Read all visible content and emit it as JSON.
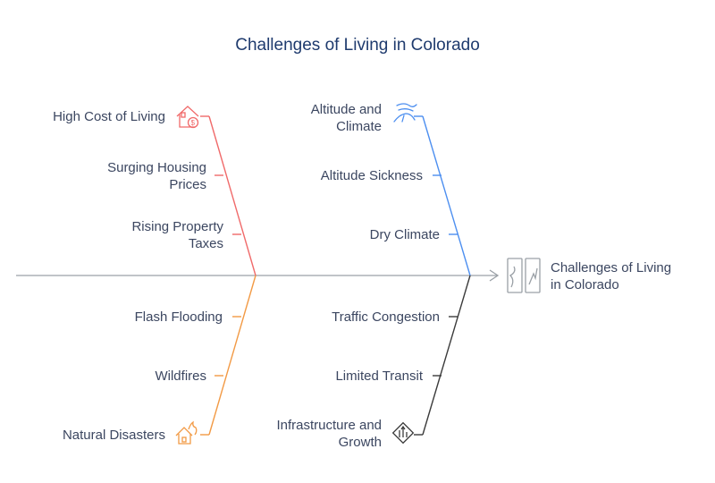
{
  "title": "Challenges of Living in Colorado",
  "head_label": [
    "Challenges of Living",
    "in Colorado"
  ],
  "branches": {
    "cost": {
      "color": "#f06a6a",
      "category": "High Cost of Living",
      "icon": "house-dollar-icon",
      "causes": [
        [
          "Surging Housing",
          "Prices"
        ],
        [
          "Rising Property",
          "Taxes"
        ]
      ]
    },
    "altitude": {
      "color": "#4d8ff0",
      "category": [
        "Altitude and",
        "Climate"
      ],
      "icon": "wind-icon",
      "causes": [
        "Altitude Sickness",
        "Dry Climate"
      ]
    },
    "disasters": {
      "color": "#f29a45",
      "category": "Natural Disasters",
      "icon": "house-fire-icon",
      "causes": [
        "Flash Flooding",
        "Wildfires"
      ]
    },
    "infrastructure": {
      "color": "#3b3b3b",
      "category": [
        "Infrastructure and",
        "Growth"
      ],
      "icon": "road-sign-icon",
      "causes": [
        "Traffic Congestion",
        "Limited Transit"
      ]
    }
  },
  "spine_color": "#9aa0a6"
}
